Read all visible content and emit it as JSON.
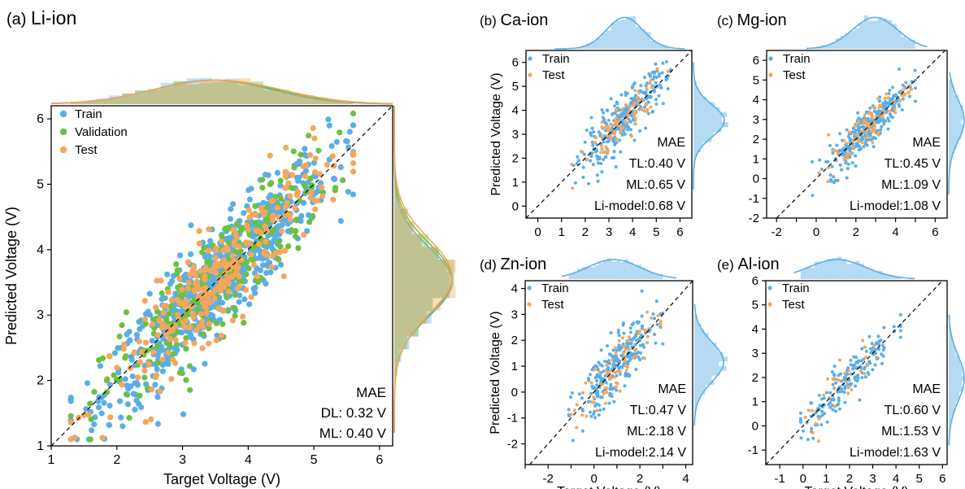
{
  "colors": {
    "train": "#5aaee6",
    "validation": "#6cc040",
    "test": "#f5a65c"
  },
  "chart_data": [
    {
      "id": "a",
      "type": "scatter",
      "title": "(a) Li-ion",
      "xlabel": "Target Voltage (V)",
      "ylabel": "Predicted Voltage (V)",
      "xlim": [
        1,
        6.2
      ],
      "ylim": [
        1,
        6.2
      ],
      "xticks": [
        1,
        2,
        3,
        4,
        5,
        6
      ],
      "yticks": [
        1,
        2,
        3,
        4,
        5,
        6
      ],
      "diagonal": true,
      "series": [
        {
          "name": "Train",
          "color": "#5aaee6",
          "n": 750,
          "xmin": 1.3,
          "xmax": 5.6,
          "center": 3.5,
          "spread": 0.85,
          "noise": 0.38
        },
        {
          "name": "Validation",
          "color": "#6cc040",
          "n": 260,
          "xmin": 1.3,
          "xmax": 5.6,
          "center": 3.5,
          "spread": 0.85,
          "noise": 0.4
        },
        {
          "name": "Test",
          "color": "#f5a65c",
          "n": 280,
          "xmin": 1.3,
          "xmax": 5.6,
          "center": 3.6,
          "spread": 0.85,
          "noise": 0.38
        }
      ],
      "annotations": [
        "MAE",
        "DL: 0.32 V",
        "ML: 0.40 V"
      ],
      "marginal_top": {
        "range": [
          1.3,
          5.6
        ],
        "center": 3.5,
        "spread": 0.95
      },
      "marginal_right": {
        "range": [
          1.5,
          5.8
        ],
        "center": 3.55,
        "spread": 0.55
      }
    },
    {
      "id": "b",
      "type": "scatter",
      "title": "(b) Ca-ion",
      "xlabel": "",
      "ylabel": "Predicted Voltage (V)",
      "xlim": [
        -0.5,
        6.5
      ],
      "ylim": [
        -0.5,
        6.5
      ],
      "xticks": [
        0,
        1,
        2,
        3,
        4,
        5,
        6
      ],
      "yticks": [
        0,
        1,
        2,
        3,
        4,
        5,
        6
      ],
      "diagonal": true,
      "series": [
        {
          "name": "Train",
          "color": "#5aaee6",
          "n": 300,
          "xmin": 1.0,
          "xmax": 5.6,
          "center": 3.6,
          "spread": 0.9,
          "noise": 0.5
        },
        {
          "name": "Test",
          "color": "#f5a65c",
          "n": 80,
          "xmin": 1.2,
          "xmax": 5.5,
          "center": 3.6,
          "spread": 0.9,
          "noise": 0.4
        }
      ],
      "annotations": [
        "MAE",
        "TL:0.40 V",
        "ML:0.65 V",
        "Li-model:0.68 V"
      ],
      "marginal_top": {
        "range": [
          1.0,
          5.6
        ],
        "center": 3.7,
        "spread": 0.8
      },
      "marginal_right": {
        "range": [
          1.0,
          5.6
        ],
        "center": 3.6,
        "spread": 0.7
      }
    },
    {
      "id": "c",
      "type": "scatter",
      "title": "(c) Mg-ion",
      "xlabel": "",
      "ylabel": "",
      "xlim": [
        -2.5,
        6.6
      ],
      "ylim": [
        -2,
        6.5
      ],
      "xticks": [
        -2,
        -1,
        0,
        1,
        2,
        3,
        4,
        5,
        6
      ],
      "yticks": [
        -2,
        -1,
        0,
        1,
        2,
        3,
        4,
        5,
        6
      ],
      "xtick_labels": [
        "-2",
        "",
        "0",
        "",
        "2",
        "",
        "4",
        "",
        "6"
      ],
      "diagonal": true,
      "series": [
        {
          "name": "Train",
          "color": "#5aaee6",
          "n": 300,
          "xmin": -0.2,
          "xmax": 5.0,
          "center": 2.6,
          "spread": 1.0,
          "noise": 0.5
        },
        {
          "name": "Test",
          "color": "#f5a65c",
          "n": 80,
          "xmin": -0.2,
          "xmax": 4.8,
          "center": 2.6,
          "spread": 1.0,
          "noise": 0.45
        }
      ],
      "annotations": [
        "MAE",
        "TL:0.45 V",
        "ML:1.09 V",
        "Li-model:1.08 V"
      ],
      "marginal_top": {
        "range": [
          -0.2,
          5.0
        ],
        "center": 3.0,
        "spread": 1.2
      },
      "marginal_right": {
        "range": [
          -0.5,
          5.0
        ],
        "center": 3.0,
        "spread": 1.1
      }
    },
    {
      "id": "d",
      "type": "scatter",
      "title": "(d) Zn-ion",
      "xlabel": "Target Voltage (V)",
      "ylabel": "Predicted Voltage (V)",
      "xlim": [
        -3,
        4.3
      ],
      "ylim": [
        -2.8,
        4.3
      ],
      "xticks": [
        -3,
        -2,
        -1,
        0,
        1,
        2,
        3,
        4
      ],
      "yticks": [
        -2,
        -1,
        0,
        1,
        2,
        3,
        4
      ],
      "xtick_labels": [
        "",
        "-2",
        "",
        "0",
        "",
        "2",
        "",
        "4"
      ],
      "diagonal": true,
      "series": [
        {
          "name": "Train",
          "color": "#5aaee6",
          "n": 260,
          "xmin": -1.1,
          "xmax": 3.0,
          "center": 1.0,
          "spread": 0.9,
          "noise": 0.55
        },
        {
          "name": "Test",
          "color": "#f5a65c",
          "n": 70,
          "xmin": -1.0,
          "xmax": 2.9,
          "center": 1.0,
          "spread": 0.9,
          "noise": 0.5
        }
      ],
      "annotations": [
        "MAE",
        "TL:0.47 V",
        "ML:2.18 V",
        "Li-model:2.14 V"
      ],
      "marginal_top": {
        "range": [
          -1.1,
          3.0
        ],
        "center": 0.9,
        "spread": 1.2
      },
      "marginal_right": {
        "range": [
          -1.0,
          3.0
        ],
        "center": 1.2,
        "spread": 0.8
      }
    },
    {
      "id": "e",
      "type": "scatter",
      "title": "(e) Al-ion",
      "xlabel": "Target Voltage (V)",
      "ylabel": "",
      "xlim": [
        -1.6,
        6.2
      ],
      "ylim": [
        -1.6,
        6.0
      ],
      "xticks": [
        -1,
        0,
        1,
        2,
        3,
        4,
        5,
        6
      ],
      "yticks": [
        -1,
        0,
        1,
        2,
        3,
        4,
        5,
        6
      ],
      "xtick_labels": [
        "-1",
        "0",
        "1",
        "2",
        "3",
        "4",
        "5",
        "6"
      ],
      "diagonal": true,
      "series": [
        {
          "name": "Train",
          "color": "#5aaee6",
          "n": 170,
          "xmin": -0.1,
          "xmax": 4.2,
          "center": 1.8,
          "spread": 1.0,
          "noise": 0.45
        },
        {
          "name": "Test",
          "color": "#f5a65c",
          "n": 30,
          "xmin": 0.1,
          "xmax": 4.2,
          "center": 1.8,
          "spread": 1.0,
          "noise": 0.55
        }
      ],
      "annotations": [
        "MAE",
        "TL:0.60 V",
        "ML:1.53 V",
        "Li-model:1.63 V"
      ],
      "marginal_top": {
        "range": [
          -0.1,
          4.2
        ],
        "center": 1.5,
        "spread": 1.3
      },
      "marginal_right": {
        "range": [
          -0.5,
          4.2
        ],
        "center": 2.0,
        "spread": 1.0
      }
    }
  ]
}
